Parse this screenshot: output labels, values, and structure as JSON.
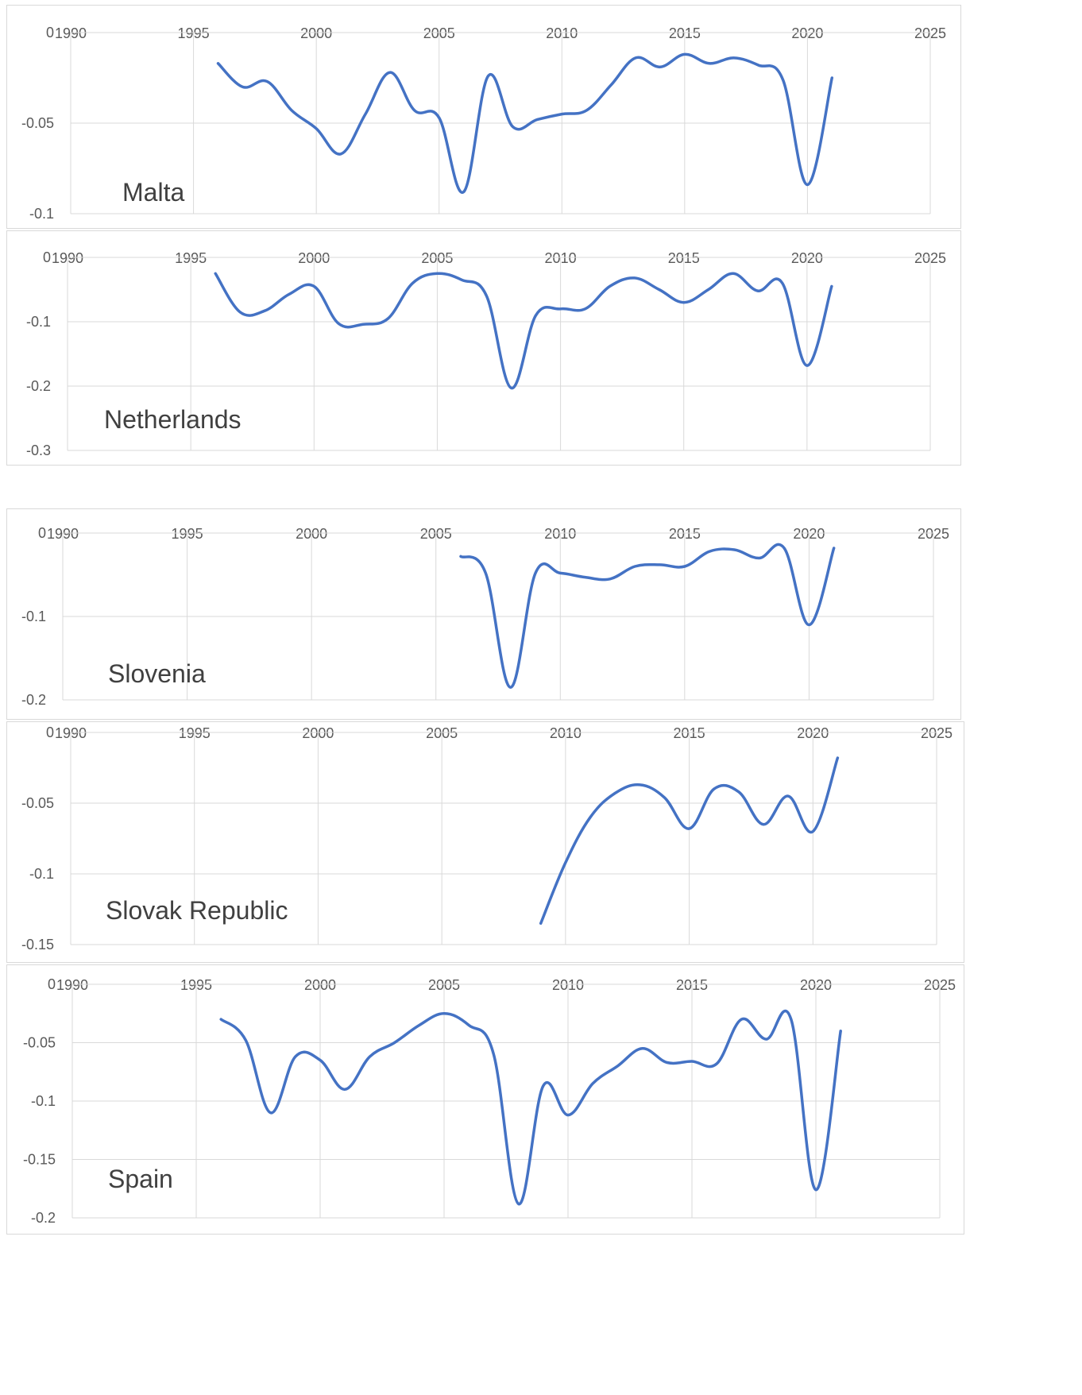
{
  "chart_data": [
    {
      "type": "line",
      "label": "Malta",
      "xlim": [
        1990,
        2025
      ],
      "x_ticks": [
        "1990",
        "1995",
        "2000",
        "2005",
        "2010",
        "2015",
        "2020",
        "2025"
      ],
      "ylim": [
        -0.1,
        0
      ],
      "y_ticks": [
        "0",
        "-0.05",
        "-0.1"
      ],
      "grid": true,
      "x": [
        1996,
        1997,
        1998,
        1999,
        2000,
        2001,
        2002,
        2003,
        2004,
        2005,
        2006,
        2007,
        2008,
        2009,
        2010,
        2011,
        2012,
        2013,
        2014,
        2015,
        2016,
        2017,
        2018,
        2019,
        2020,
        2021
      ],
      "values": [
        -0.017,
        -0.03,
        -0.027,
        -0.043,
        -0.053,
        -0.067,
        -0.045,
        -0.022,
        -0.043,
        -0.047,
        -0.088,
        -0.024,
        -0.052,
        -0.048,
        -0.045,
        -0.043,
        -0.029,
        -0.014,
        -0.019,
        -0.012,
        -0.017,
        -0.014,
        -0.018,
        -0.026,
        -0.084,
        -0.025
      ]
    },
    {
      "type": "line",
      "label": "Netherlands",
      "xlim": [
        1990,
        2025
      ],
      "x_ticks": [
        "1990",
        "1995",
        "2000",
        "2005",
        "2010",
        "2015",
        "2020",
        "2025"
      ],
      "ylim": [
        -0.3,
        0
      ],
      "y_ticks": [
        "0",
        "-0.1",
        "-0.2",
        "-0.3"
      ],
      "grid": true,
      "x": [
        1996,
        1997,
        1998,
        1999,
        2000,
        2001,
        2002,
        2003,
        2004,
        2005,
        2006,
        2007,
        2008,
        2009,
        2010,
        2011,
        2012,
        2013,
        2014,
        2015,
        2016,
        2017,
        2018,
        2019,
        2020,
        2021
      ],
      "values": [
        -0.025,
        -0.085,
        -0.083,
        -0.057,
        -0.045,
        -0.103,
        -0.104,
        -0.095,
        -0.04,
        -0.025,
        -0.035,
        -0.06,
        -0.203,
        -0.09,
        -0.08,
        -0.08,
        -0.045,
        -0.032,
        -0.05,
        -0.07,
        -0.05,
        -0.025,
        -0.052,
        -0.04,
        -0.168,
        -0.045
      ]
    },
    {
      "type": "line",
      "label": "Slovenia",
      "xlim": [
        1990,
        2025
      ],
      "x_ticks": [
        "1990",
        "1995",
        "2000",
        "2005",
        "2010",
        "2015",
        "2020",
        "2025"
      ],
      "ylim": [
        -0.2,
        0
      ],
      "y_ticks": [
        "0",
        "-0.1",
        "-0.2"
      ],
      "grid": true,
      "x": [
        2006,
        2007,
        2008,
        2009,
        2010,
        2011,
        2012,
        2013,
        2014,
        2015,
        2016,
        2017,
        2018,
        2019,
        2020,
        2021
      ],
      "values": [
        -0.028,
        -0.048,
        -0.185,
        -0.048,
        -0.048,
        -0.053,
        -0.055,
        -0.04,
        -0.038,
        -0.04,
        -0.022,
        -0.02,
        -0.03,
        -0.018,
        -0.11,
        -0.018
      ]
    },
    {
      "type": "line",
      "label": "Slovak Republic",
      "xlim": [
        1990,
        2025
      ],
      "x_ticks": [
        "1990",
        "1995",
        "2000",
        "2005",
        "2010",
        "2015",
        "2020",
        "2025"
      ],
      "ylim": [
        -0.15,
        0
      ],
      "y_ticks": [
        "0",
        "-0.05",
        "-0.1",
        "-0.15"
      ],
      "grid": true,
      "x": [
        2009,
        2010,
        2011,
        2012,
        2013,
        2014,
        2015,
        2016,
        2017,
        2018,
        2019,
        2020,
        2021
      ],
      "values": [
        -0.135,
        -0.092,
        -0.06,
        -0.043,
        -0.037,
        -0.046,
        -0.068,
        -0.04,
        -0.042,
        -0.065,
        -0.045,
        -0.07,
        -0.018
      ]
    },
    {
      "type": "line",
      "label": "Spain",
      "xlim": [
        1990,
        2025
      ],
      "x_ticks": [
        "1990",
        "1995",
        "2000",
        "2005",
        "2010",
        "2015",
        "2020",
        "2025"
      ],
      "ylim": [
        -0.2,
        0
      ],
      "y_ticks": [
        "0",
        "-0.05",
        "-0.1",
        "-0.15",
        "-0.2"
      ],
      "grid": true,
      "x": [
        1996,
        1997,
        1998,
        1999,
        2000,
        2001,
        2002,
        2003,
        2004,
        2005,
        2006,
        2007,
        2008,
        2009,
        2010,
        2011,
        2012,
        2013,
        2014,
        2015,
        2016,
        2017,
        2018,
        2019,
        2020,
        2021
      ],
      "values": [
        -0.03,
        -0.048,
        -0.11,
        -0.062,
        -0.065,
        -0.09,
        -0.062,
        -0.05,
        -0.035,
        -0.025,
        -0.035,
        -0.06,
        -0.188,
        -0.087,
        -0.112,
        -0.085,
        -0.07,
        -0.055,
        -0.067,
        -0.066,
        -0.068,
        -0.03,
        -0.047,
        -0.03,
        -0.176,
        -0.04
      ]
    }
  ],
  "style": {
    "line_color": "#4472c4",
    "grid_color": "#d9d9d9",
    "text_color": "#595959",
    "label_color": "#404040"
  }
}
